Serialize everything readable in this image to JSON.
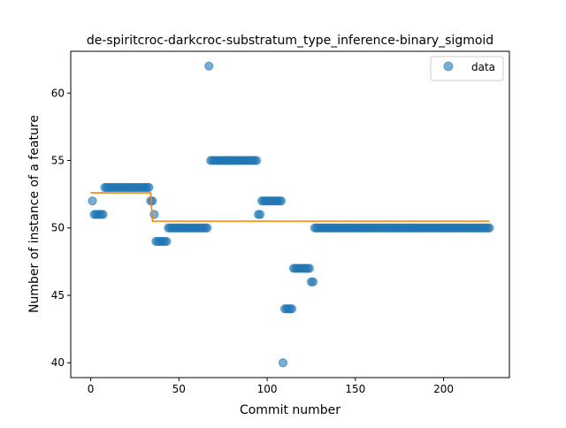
{
  "chart_data": {
    "type": "scatter",
    "title": "de-spiritcroc-darkcroc-substratum_type_inference-binary_sigmoid",
    "xlabel": "Commit number",
    "ylabel": "Number of instance of a feature",
    "xlim": [
      -11.3,
      237.3
    ],
    "ylim": [
      38.9,
      63.1
    ],
    "xticks": [
      0,
      50,
      100,
      150,
      200
    ],
    "yticks": [
      40,
      45,
      50,
      55,
      60
    ],
    "grid": false,
    "legend": {
      "position": "top-right",
      "entries": [
        "data"
      ]
    },
    "colors": {
      "data": "#1f77b4",
      "fit": "#ff7f0e"
    },
    "series": [
      {
        "name": "data",
        "kind": "scatter",
        "segments": [
          {
            "x_start": 1,
            "x_end": 1,
            "y": 52
          },
          {
            "x_start": 2,
            "x_end": 7,
            "y": 51
          },
          {
            "x_start": 8,
            "x_end": 33,
            "y": 53
          },
          {
            "x_start": 34,
            "x_end": 35,
            "y": 52
          },
          {
            "x_start": 36,
            "x_end": 36,
            "y": 51
          },
          {
            "x_start": 37,
            "x_end": 43,
            "y": 49
          },
          {
            "x_start": 44,
            "x_end": 66,
            "y": 50
          },
          {
            "x_start": 67,
            "x_end": 67,
            "y": 62
          },
          {
            "x_start": 68,
            "x_end": 94,
            "y": 55
          },
          {
            "x_start": 95,
            "x_end": 96,
            "y": 51
          },
          {
            "x_start": 97,
            "x_end": 108,
            "y": 52
          },
          {
            "x_start": 109,
            "x_end": 109,
            "y": 40
          },
          {
            "x_start": 110,
            "x_end": 114,
            "y": 44
          },
          {
            "x_start": 115,
            "x_end": 124,
            "y": 47
          },
          {
            "x_start": 125,
            "x_end": 126,
            "y": 46
          },
          {
            "x_start": 127,
            "x_end": 226,
            "y": 50
          }
        ]
      },
      {
        "name": "",
        "kind": "step-line",
        "points": [
          [
            0,
            52.6
          ],
          [
            34,
            52.6
          ],
          [
            35,
            50.5
          ],
          [
            226,
            50.5
          ]
        ]
      }
    ]
  }
}
